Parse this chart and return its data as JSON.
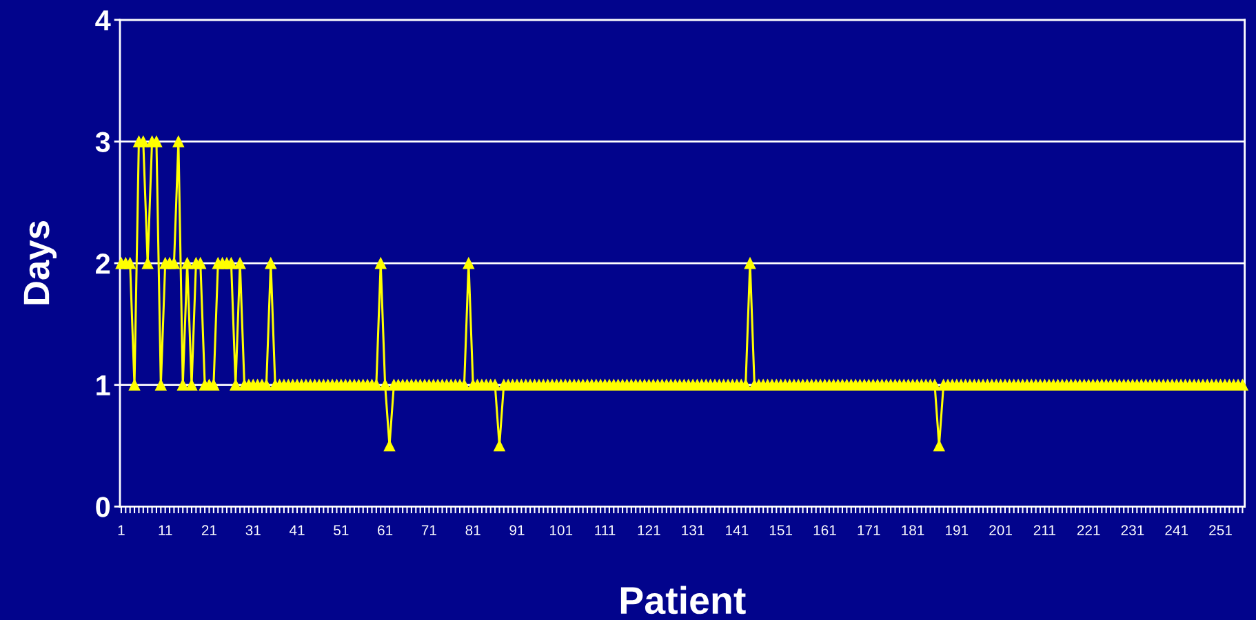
{
  "chart_data": {
    "type": "line",
    "xlabel": "Patient",
    "ylabel": "Days",
    "categories": [
      "1",
      null,
      null,
      null,
      null,
      null,
      null,
      null,
      null,
      null,
      "11",
      null,
      null,
      null,
      null,
      null,
      null,
      null,
      null,
      null,
      "21",
      null,
      null,
      null,
      null,
      null,
      null,
      null,
      null,
      null,
      "31",
      null,
      null,
      null,
      null,
      null,
      null,
      null,
      null,
      null,
      "41",
      null,
      null,
      null,
      null,
      null,
      null,
      null,
      null,
      null,
      "51",
      null,
      null,
      null,
      null,
      null,
      null,
      null,
      null,
      null,
      "61",
      null,
      null,
      null,
      null,
      null,
      null,
      null,
      null,
      null,
      "71",
      null,
      null,
      null,
      null,
      null,
      null,
      null,
      null,
      null,
      "81",
      null,
      null,
      null,
      null,
      null,
      null,
      null,
      null,
      null,
      "91",
      null,
      null,
      null,
      null,
      null,
      null,
      null,
      null,
      null,
      "101",
      null,
      null,
      null,
      null,
      null,
      null,
      null,
      null,
      null,
      "111",
      null,
      null,
      null,
      null,
      null,
      null,
      null,
      null,
      null,
      "121",
      null,
      null,
      null,
      null,
      null,
      null,
      null,
      null,
      null,
      "131",
      null,
      null,
      null,
      null,
      null,
      null,
      null,
      null,
      null,
      "141",
      null,
      null,
      null,
      null,
      null,
      null,
      null,
      null,
      null,
      "151",
      null,
      null,
      null,
      null,
      null,
      null,
      null,
      null,
      null,
      "161",
      null,
      null,
      null,
      null,
      null,
      null,
      null,
      null,
      null,
      "171",
      null,
      null,
      null,
      null,
      null,
      null,
      null,
      null,
      null,
      "181",
      null,
      null,
      null,
      null,
      null,
      null,
      null,
      null,
      null,
      "191",
      null,
      null,
      null,
      null,
      null,
      null,
      null,
      null,
      null,
      "201",
      null,
      null,
      null,
      null,
      null,
      null,
      null,
      null,
      null,
      "211",
      null,
      null,
      null,
      null,
      null,
      null,
      null,
      null,
      null,
      "221",
      null,
      null,
      null,
      null,
      null,
      null,
      null,
      null,
      null,
      "231",
      null,
      null,
      null,
      null,
      null,
      null,
      null,
      null,
      null,
      "241",
      null,
      null,
      null,
      null,
      null,
      null,
      null,
      null,
      null,
      "251",
      null,
      null,
      null,
      null,
      null
    ],
    "series": [
      {
        "color": "#ffff00",
        "values": [
          2,
          2,
          2,
          1,
          3,
          3,
          2,
          3,
          3,
          1,
          2,
          2,
          2,
          3,
          1,
          2,
          1,
          2,
          2,
          1,
          1,
          1,
          2,
          2,
          2,
          2,
          1,
          2,
          1,
          1,
          1,
          1,
          1,
          1,
          2,
          1,
          1,
          1,
          1,
          1,
          1,
          1,
          1,
          1,
          1,
          1,
          1,
          1,
          1,
          1,
          1,
          1,
          1,
          1,
          1,
          1,
          1,
          1,
          1,
          2,
          1,
          0.5,
          1,
          1,
          1,
          1,
          1,
          1,
          1,
          1,
          1,
          1,
          1,
          1,
          1,
          1,
          1,
          1,
          1,
          2,
          1,
          1,
          1,
          1,
          1,
          1,
          0.5,
          1,
          1,
          1,
          1,
          1,
          1,
          1,
          1,
          1,
          1,
          1,
          1,
          1,
          1,
          1,
          1,
          1,
          1,
          1,
          1,
          1,
          1,
          1,
          1,
          1,
          1,
          1,
          1,
          1,
          1,
          1,
          1,
          1,
          1,
          1,
          1,
          1,
          1,
          1,
          1,
          1,
          1,
          1,
          1,
          1,
          1,
          1,
          1,
          1,
          1,
          1,
          1,
          1,
          1,
          1,
          1,
          2,
          1,
          1,
          1,
          1,
          1,
          1,
          1,
          1,
          1,
          1,
          1,
          1,
          1,
          1,
          1,
          1,
          1,
          1,
          1,
          1,
          1,
          1,
          1,
          1,
          1,
          1,
          1,
          1,
          1,
          1,
          1,
          1,
          1,
          1,
          1,
          1,
          1,
          1,
          1,
          1,
          1,
          1,
          0.5,
          1,
          1,
          1,
          1,
          1,
          1,
          1,
          1,
          1,
          1,
          1,
          1,
          1,
          1,
          1,
          1,
          1,
          1,
          1,
          1,
          1,
          1,
          1,
          1,
          1,
          1,
          1,
          1,
          1,
          1,
          1,
          1,
          1,
          1,
          1,
          1,
          1,
          1,
          1,
          1,
          1,
          1,
          1,
          1,
          1,
          1,
          1,
          1,
          1,
          1,
          1,
          1,
          1,
          1,
          1,
          1,
          1,
          1,
          1,
          1,
          1,
          1,
          1,
          1,
          1,
          1,
          1,
          1,
          1
        ]
      }
    ],
    "ylim": [
      0,
      4
    ],
    "yticks": [
      0,
      1,
      2,
      3,
      4
    ],
    "grid": "y",
    "marker": "triangle",
    "line_style": "solid"
  }
}
